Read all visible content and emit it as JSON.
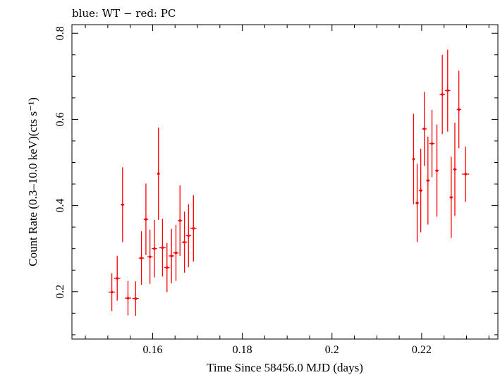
{
  "chart_data": {
    "type": "scatter",
    "title": "blue: WT − red: PC",
    "xlabel": "Time Since 58456.0 MJD (days)",
    "ylabel": "Count Rate (0.3–10.0 keV)(cts s⁻¹)",
    "xlim": [
      0.142,
      0.237
    ],
    "ylim": [
      0.09,
      0.82
    ],
    "xticks": [
      0.16,
      0.18,
      0.2,
      0.22
    ],
    "xtick_labels": [
      "0.16",
      "0.18",
      "0.2",
      "0.22"
    ],
    "yticks": [
      0.2,
      0.4,
      0.6,
      0.8
    ],
    "ytick_labels": [
      "0.2",
      "0.4",
      "0.6",
      "0.8"
    ],
    "grid": false,
    "series": [
      {
        "color": "#ff0000",
        "points": [
          {
            "x": 0.1509,
            "xerr": 0.0007,
            "y": 0.199,
            "yerr": 0.044
          },
          {
            "x": 0.1521,
            "xerr": 0.0007,
            "y": 0.231,
            "yerr": 0.052
          },
          {
            "x": 0.1533,
            "xerr": 0.0004,
            "y": 0.402,
            "yerr": 0.087
          },
          {
            "x": 0.1545,
            "xerr": 0.0007,
            "y": 0.185,
            "yerr": 0.04
          },
          {
            "x": 0.1562,
            "xerr": 0.0007,
            "y": 0.184,
            "yerr": 0.04
          },
          {
            "x": 0.1575,
            "xerr": 0.0006,
            "y": 0.278,
            "yerr": 0.062
          },
          {
            "x": 0.1585,
            "xerr": 0.0005,
            "y": 0.368,
            "yerr": 0.083
          },
          {
            "x": 0.1594,
            "xerr": 0.0006,
            "y": 0.281,
            "yerr": 0.063
          },
          {
            "x": 0.1604,
            "xerr": 0.0006,
            "y": 0.3,
            "yerr": 0.067
          },
          {
            "x": 0.1613,
            "xerr": 0.0003,
            "y": 0.474,
            "yerr": 0.107
          },
          {
            "x": 0.1622,
            "xerr": 0.0007,
            "y": 0.302,
            "yerr": 0.067
          },
          {
            "x": 0.1632,
            "xerr": 0.0006,
            "y": 0.256,
            "yerr": 0.057
          },
          {
            "x": 0.1642,
            "xerr": 0.0006,
            "y": 0.283,
            "yerr": 0.063
          },
          {
            "x": 0.1652,
            "xerr": 0.0006,
            "y": 0.29,
            "yerr": 0.065
          },
          {
            "x": 0.1661,
            "xerr": 0.0005,
            "y": 0.365,
            "yerr": 0.082
          },
          {
            "x": 0.1671,
            "xerr": 0.0006,
            "y": 0.315,
            "yerr": 0.071
          },
          {
            "x": 0.168,
            "xerr": 0.0006,
            "y": 0.33,
            "yerr": 0.073
          },
          {
            "x": 0.1691,
            "xerr": 0.0007,
            "y": 0.347,
            "yerr": 0.077
          },
          {
            "x": 0.2182,
            "xerr": 0.0003,
            "y": 0.508,
            "yerr": 0.105
          },
          {
            "x": 0.219,
            "xerr": 0.0004,
            "y": 0.406,
            "yerr": 0.091
          },
          {
            "x": 0.2198,
            "xerr": 0.0004,
            "y": 0.435,
            "yerr": 0.097
          },
          {
            "x": 0.2206,
            "xerr": 0.0005,
            "y": 0.578,
            "yerr": 0.086
          },
          {
            "x": 0.2214,
            "xerr": 0.0004,
            "y": 0.458,
            "yerr": 0.102
          },
          {
            "x": 0.2223,
            "xerr": 0.0006,
            "y": 0.544,
            "yerr": 0.078
          },
          {
            "x": 0.2234,
            "xerr": 0.0004,
            "y": 0.481,
            "yerr": 0.107
          },
          {
            "x": 0.2246,
            "xerr": 0.0006,
            "y": 0.658,
            "yerr": 0.092
          },
          {
            "x": 0.2258,
            "xerr": 0.0006,
            "y": 0.667,
            "yerr": 0.095
          },
          {
            "x": 0.2266,
            "xerr": 0.0004,
            "y": 0.419,
            "yerr": 0.094
          },
          {
            "x": 0.2274,
            "xerr": 0.0004,
            "y": 0.484,
            "yerr": 0.108
          },
          {
            "x": 0.2283,
            "xerr": 0.0005,
            "y": 0.623,
            "yerr": 0.09
          },
          {
            "x": 0.2298,
            "xerr": 0.0008,
            "y": 0.473,
            "yerr": 0.064
          }
        ]
      }
    ]
  }
}
